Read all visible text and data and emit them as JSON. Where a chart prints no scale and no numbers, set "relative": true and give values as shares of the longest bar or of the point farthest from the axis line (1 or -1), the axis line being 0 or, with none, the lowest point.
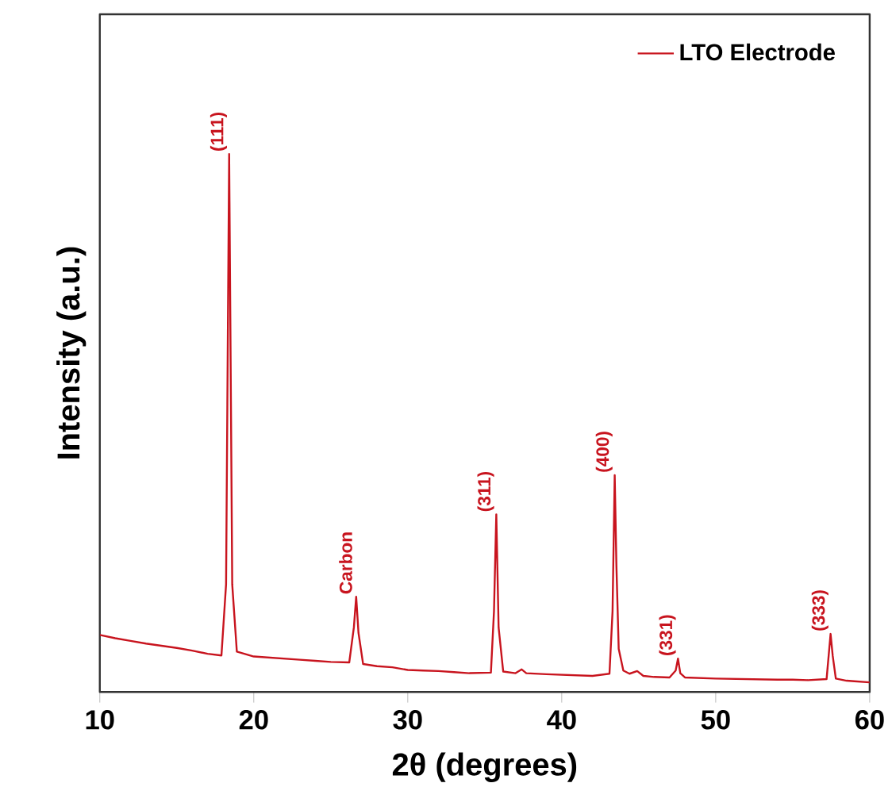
{
  "chart_data": {
    "type": "line",
    "xlabel": "2θ (degrees)",
    "ylabel": "Intensity (a.u.)",
    "relative": true,
    "x": [
      10,
      11,
      12,
      13,
      14,
      15,
      16,
      17,
      17.9,
      18.2,
      18.4,
      18.6,
      18.9,
      20,
      21,
      22,
      23,
      24,
      25,
      26.2,
      26.5,
      26.65,
      26.8,
      27.1,
      28,
      29,
      30,
      31,
      32,
      33,
      34,
      35.4,
      35.6,
      35.75,
      35.9,
      36.2,
      37.0,
      37.4,
      37.7,
      39,
      40,
      41,
      42,
      43.1,
      43.3,
      43.44,
      43.55,
      43.7,
      44.0,
      44.4,
      44.9,
      45.3,
      46,
      47,
      47.4,
      47.55,
      47.7,
      48,
      50,
      52,
      54,
      55,
      56,
      57.2,
      57.46,
      57.6,
      57.8,
      58.5,
      59,
      60
    ],
    "series": [
      {
        "name": "LTO Electrode",
        "color": "#c8141e",
        "values": [
          0.106,
          0.1,
          0.095,
          0.09,
          0.086,
          0.082,
          0.077,
          0.071,
          0.068,
          0.2,
          1.0,
          0.2,
          0.075,
          0.066,
          0.064,
          0.062,
          0.06,
          0.058,
          0.056,
          0.055,
          0.12,
          0.177,
          0.11,
          0.052,
          0.048,
          0.046,
          0.041,
          0.04,
          0.039,
          0.037,
          0.035,
          0.036,
          0.15,
          0.33,
          0.12,
          0.038,
          0.035,
          0.042,
          0.035,
          0.033,
          0.032,
          0.031,
          0.03,
          0.034,
          0.15,
          0.403,
          0.236,
          0.08,
          0.04,
          0.034,
          0.039,
          0.03,
          0.028,
          0.027,
          0.04,
          0.062,
          0.035,
          0.027,
          0.025,
          0.024,
          0.023,
          0.023,
          0.022,
          0.024,
          0.108,
          0.067,
          0.025,
          0.021,
          0.02,
          0.018
        ]
      }
    ],
    "xlim": [
      10,
      60
    ],
    "xticks": [
      10,
      20,
      30,
      40,
      50,
      60
    ],
    "annotations": [
      {
        "text": "(111)",
        "x": 18.4,
        "y": 1.0
      },
      {
        "text": "Carbon",
        "x": 26.65,
        "y": 0.177
      },
      {
        "text": "(311)",
        "x": 35.75,
        "y": 0.33
      },
      {
        "text": "(400)",
        "x": 43.44,
        "y": 0.403
      },
      {
        "text": "(331)",
        "x": 47.55,
        "y": 0.062
      },
      {
        "text": "(333)",
        "x": 57.46,
        "y": 0.108
      }
    ],
    "legend": "top right",
    "marker": "none",
    "line_style": "solid",
    "grid": false,
    "tick_labels": "x"
  }
}
